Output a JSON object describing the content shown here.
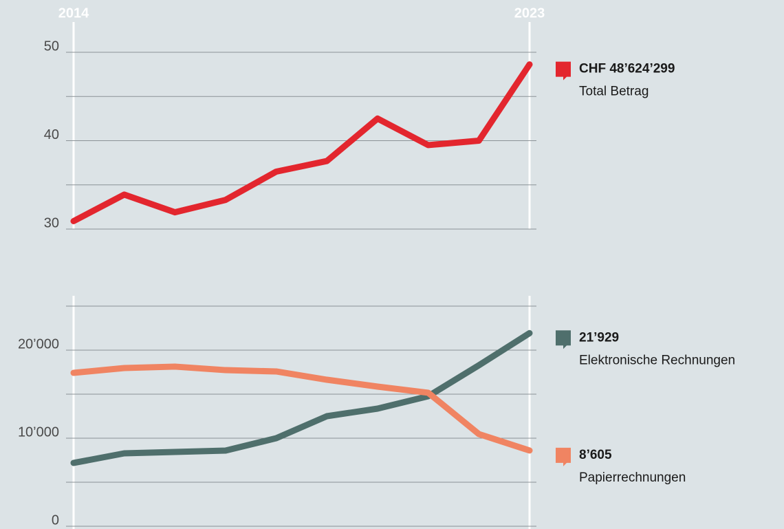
{
  "chart_data": [
    {
      "type": "line",
      "categories": [
        "2014",
        null,
        null,
        null,
        null,
        null,
        null,
        null,
        null,
        "2023"
      ],
      "series": [
        {
          "name": "Total Betrag",
          "color": "#e3262e",
          "values": [
            30.9,
            33.9,
            31.9,
            33.3,
            36.5,
            37.7,
            42.5,
            39.5,
            40.0,
            48.624299
          ],
          "value_labels": [
            null,
            null,
            null,
            null,
            null,
            null,
            null,
            null,
            null,
            "CHF 48’624’299"
          ]
        }
      ],
      "ylim": [
        30,
        50
      ],
      "yticks": [
        30,
        40,
        50
      ],
      "minor_yticks": [
        35,
        45
      ],
      "grid": true
    },
    {
      "type": "line",
      "categories": [
        null,
        null,
        null,
        null,
        null,
        null,
        null,
        null,
        null,
        null
      ],
      "series": [
        {
          "name": "Elektronische Rechnungen",
          "color": "#4f6f6c",
          "values": [
            7190,
            8280,
            8440,
            8590,
            10000,
            12500,
            13360,
            14770,
            18280,
            21929
          ],
          "value_labels": [
            null,
            null,
            null,
            null,
            null,
            null,
            null,
            null,
            null,
            "21’929"
          ]
        },
        {
          "name": "Papierrechnungen",
          "color": "#f08462",
          "values": [
            17420,
            17970,
            18130,
            17730,
            17580,
            16640,
            15860,
            15160,
            10470,
            8605
          ],
          "value_labels": [
            null,
            null,
            null,
            null,
            null,
            null,
            null,
            null,
            null,
            "8’605"
          ]
        }
      ],
      "ylim": [
        0,
        25000
      ],
      "yticks": [
        0,
        {
          "value": 10000,
          "label": "10’000"
        },
        {
          "value": 20000,
          "label": "20’000"
        }
      ],
      "minor_yticks": [
        5000,
        15000,
        25000
      ],
      "grid": true
    }
  ]
}
